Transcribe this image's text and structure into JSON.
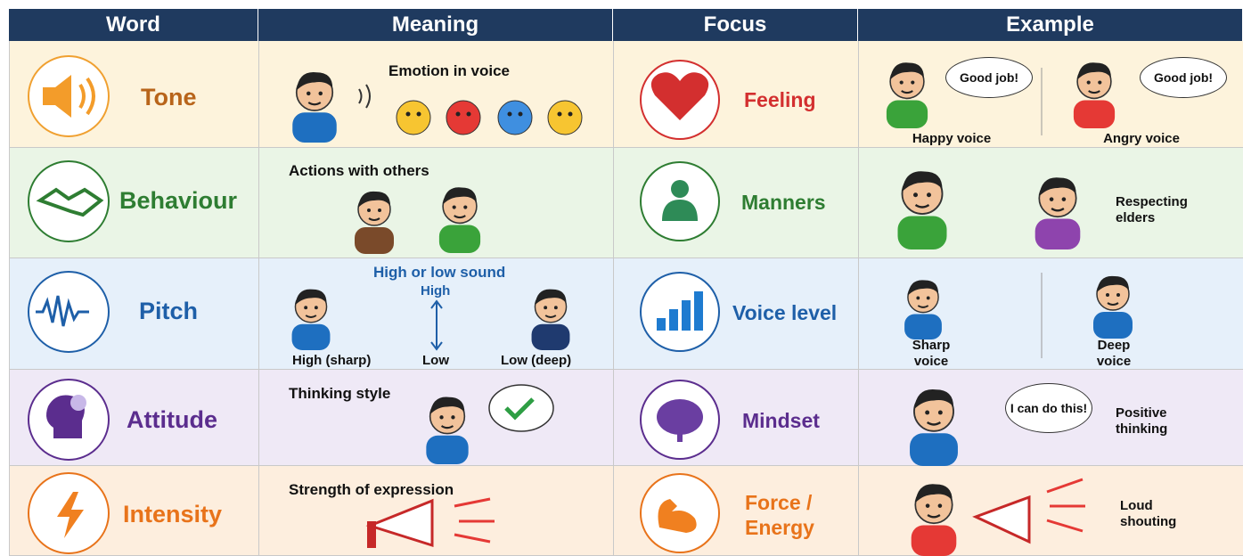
{
  "header": {
    "columns": [
      "Word",
      "Meaning",
      "Focus",
      "Example"
    ]
  },
  "rows": [
    {
      "word": "Tone",
      "meaning": {
        "text": "Emotion in voice"
      },
      "focus": "Feeling",
      "example": {
        "bubbles": [
          "Good job!",
          "Good job!"
        ],
        "captions": [
          "Happy voice",
          "Angry voice"
        ]
      }
    },
    {
      "word": "Behaviour",
      "meaning": {
        "text": "Actions with others"
      },
      "focus": "Manners",
      "example": {
        "captions": [
          "Respecting elders"
        ]
      }
    },
    {
      "word": "Pitch",
      "meaning": {
        "text": "High or low sound",
        "labels": [
          "High",
          "Low",
          "High (sharp)",
          "Low (deep)"
        ]
      },
      "focus": "Voice level",
      "example": {
        "captions": [
          "Sharp voice",
          "Deep voice"
        ]
      }
    },
    {
      "word": "Attitude",
      "meaning": {
        "text": "Thinking style"
      },
      "focus": "Mindset",
      "example": {
        "bubbles": [
          "I can do this!"
        ],
        "captions": [
          "Positive thinking"
        ]
      }
    },
    {
      "word": "Intensity",
      "meaning": {
        "text": "Strength of expression"
      },
      "focus": "Force / Energy",
      "example": {
        "captions": [
          "Loud shouting"
        ]
      }
    }
  ]
}
